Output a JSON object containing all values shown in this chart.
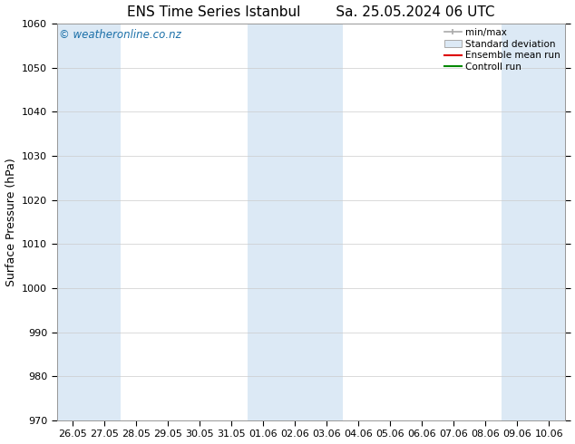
{
  "title_left": "ENS Time Series Istanbul",
  "title_right": "Sa. 25.05.2024 06 UTC",
  "ylabel": "Surface Pressure (hPa)",
  "ylim": [
    970,
    1060
  ],
  "yticks": [
    970,
    980,
    990,
    1000,
    1010,
    1020,
    1030,
    1040,
    1050,
    1060
  ],
  "x_tick_labels": [
    "26.05",
    "27.05",
    "28.05",
    "29.05",
    "30.05",
    "31.05",
    "01.06",
    "02.06",
    "03.06",
    "04.06",
    "05.06",
    "06.06",
    "07.06",
    "08.06",
    "09.06",
    "10.06"
  ],
  "background_color": "#ffffff",
  "plot_bg_color": "#ffffff",
  "shaded_band_color": "#dce9f5",
  "shaded_columns_x": [
    0,
    1,
    6,
    7,
    8,
    14,
    15
  ],
  "watermark": "© weatheronline.co.nz",
  "watermark_color": "#1a6fa8",
  "legend_labels": [
    "min/max",
    "Standard deviation",
    "Ensemble mean run",
    "Controll run"
  ],
  "legend_line_colors": [
    "#aaaaaa",
    "#c8ddf0",
    "#dd0000",
    "#008800"
  ],
  "shaded_legend_color": "#dce9f5",
  "title_fontsize": 11,
  "axis_label_fontsize": 9,
  "tick_fontsize": 8,
  "watermark_fontsize": 8.5,
  "legend_fontsize": 7.5
}
